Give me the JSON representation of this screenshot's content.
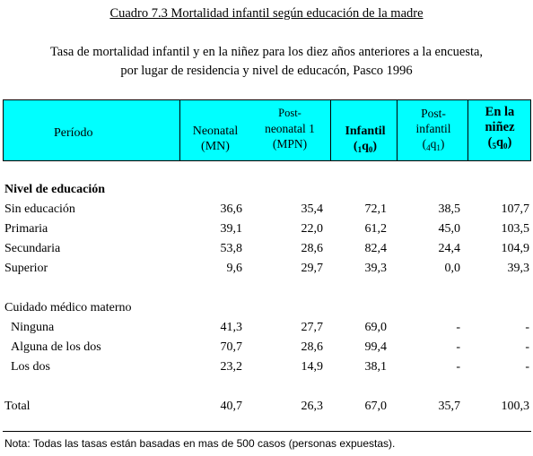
{
  "title": "Cuadro 7.3  Mortalidad infantil según educación de la madre",
  "subtitle_line1": "Tasa de mortalidad infantil y en la niñez para los diez años anteriores a la encuesta,",
  "subtitle_line2": "por lugar de residencia y nivel de educacón, Pasco 1996",
  "header": {
    "period": "Período",
    "neonatal": "Neonatal",
    "neonatal_abbr": "(MN)",
    "post_neonatal_1": "Post-",
    "post_neonatal_2": "neonatal 1",
    "post_neonatal_abbr": "(MPN)",
    "infantil": "Infantil",
    "infantil_sym": [
      "(",
      "1",
      "q",
      "0",
      ")"
    ],
    "post_infantil_1": "Post-",
    "post_infantil_2": "infantil",
    "post_infantil_sym": [
      "(",
      "4",
      "q",
      "1",
      ")"
    ],
    "nines_1": "En la",
    "nines_2": "niñez",
    "nines_sym": [
      "(",
      "5",
      "q",
      "0",
      ")"
    ]
  },
  "section_education": "Nivel de educación",
  "education_rows": [
    {
      "label": "Sin educación",
      "values": [
        "36,6",
        "35,4",
        "72,1",
        "38,5",
        "107,7"
      ]
    },
    {
      "label": "Primaria",
      "values": [
        "39,1",
        "22,0",
        "61,2",
        "45,0",
        "103,5"
      ]
    },
    {
      "label": "Secundaria",
      "values": [
        "53,8",
        "28,6",
        "82,4",
        "24,4",
        "104,9"
      ]
    },
    {
      "label": "Superior",
      "values": [
        "9,6",
        "29,7",
        "39,3",
        "0,0",
        "39,3"
      ]
    }
  ],
  "section_care": "Cuidado médico materno",
  "care_rows": [
    {
      "label": "Ninguna",
      "values": [
        "41,3",
        "27,7",
        "69,0",
        "-",
        "-"
      ]
    },
    {
      "label": "Alguna de los dos",
      "values": [
        "70,7",
        "28,6",
        "99,4",
        "-",
        "-"
      ]
    },
    {
      "label": "Los dos",
      "values": [
        "23,2",
        "14,9",
        "38,1",
        "-",
        "-"
      ]
    }
  ],
  "total_row": {
    "label": "Total",
    "values": [
      "40,7",
      "26,3",
      "67,0",
      "35,7",
      "100,3"
    ]
  },
  "note": "Nota: Todas las tasas están basadas en mas de 500 casos (personas expuestas).",
  "colors": {
    "header_bg": "#00ffff"
  }
}
